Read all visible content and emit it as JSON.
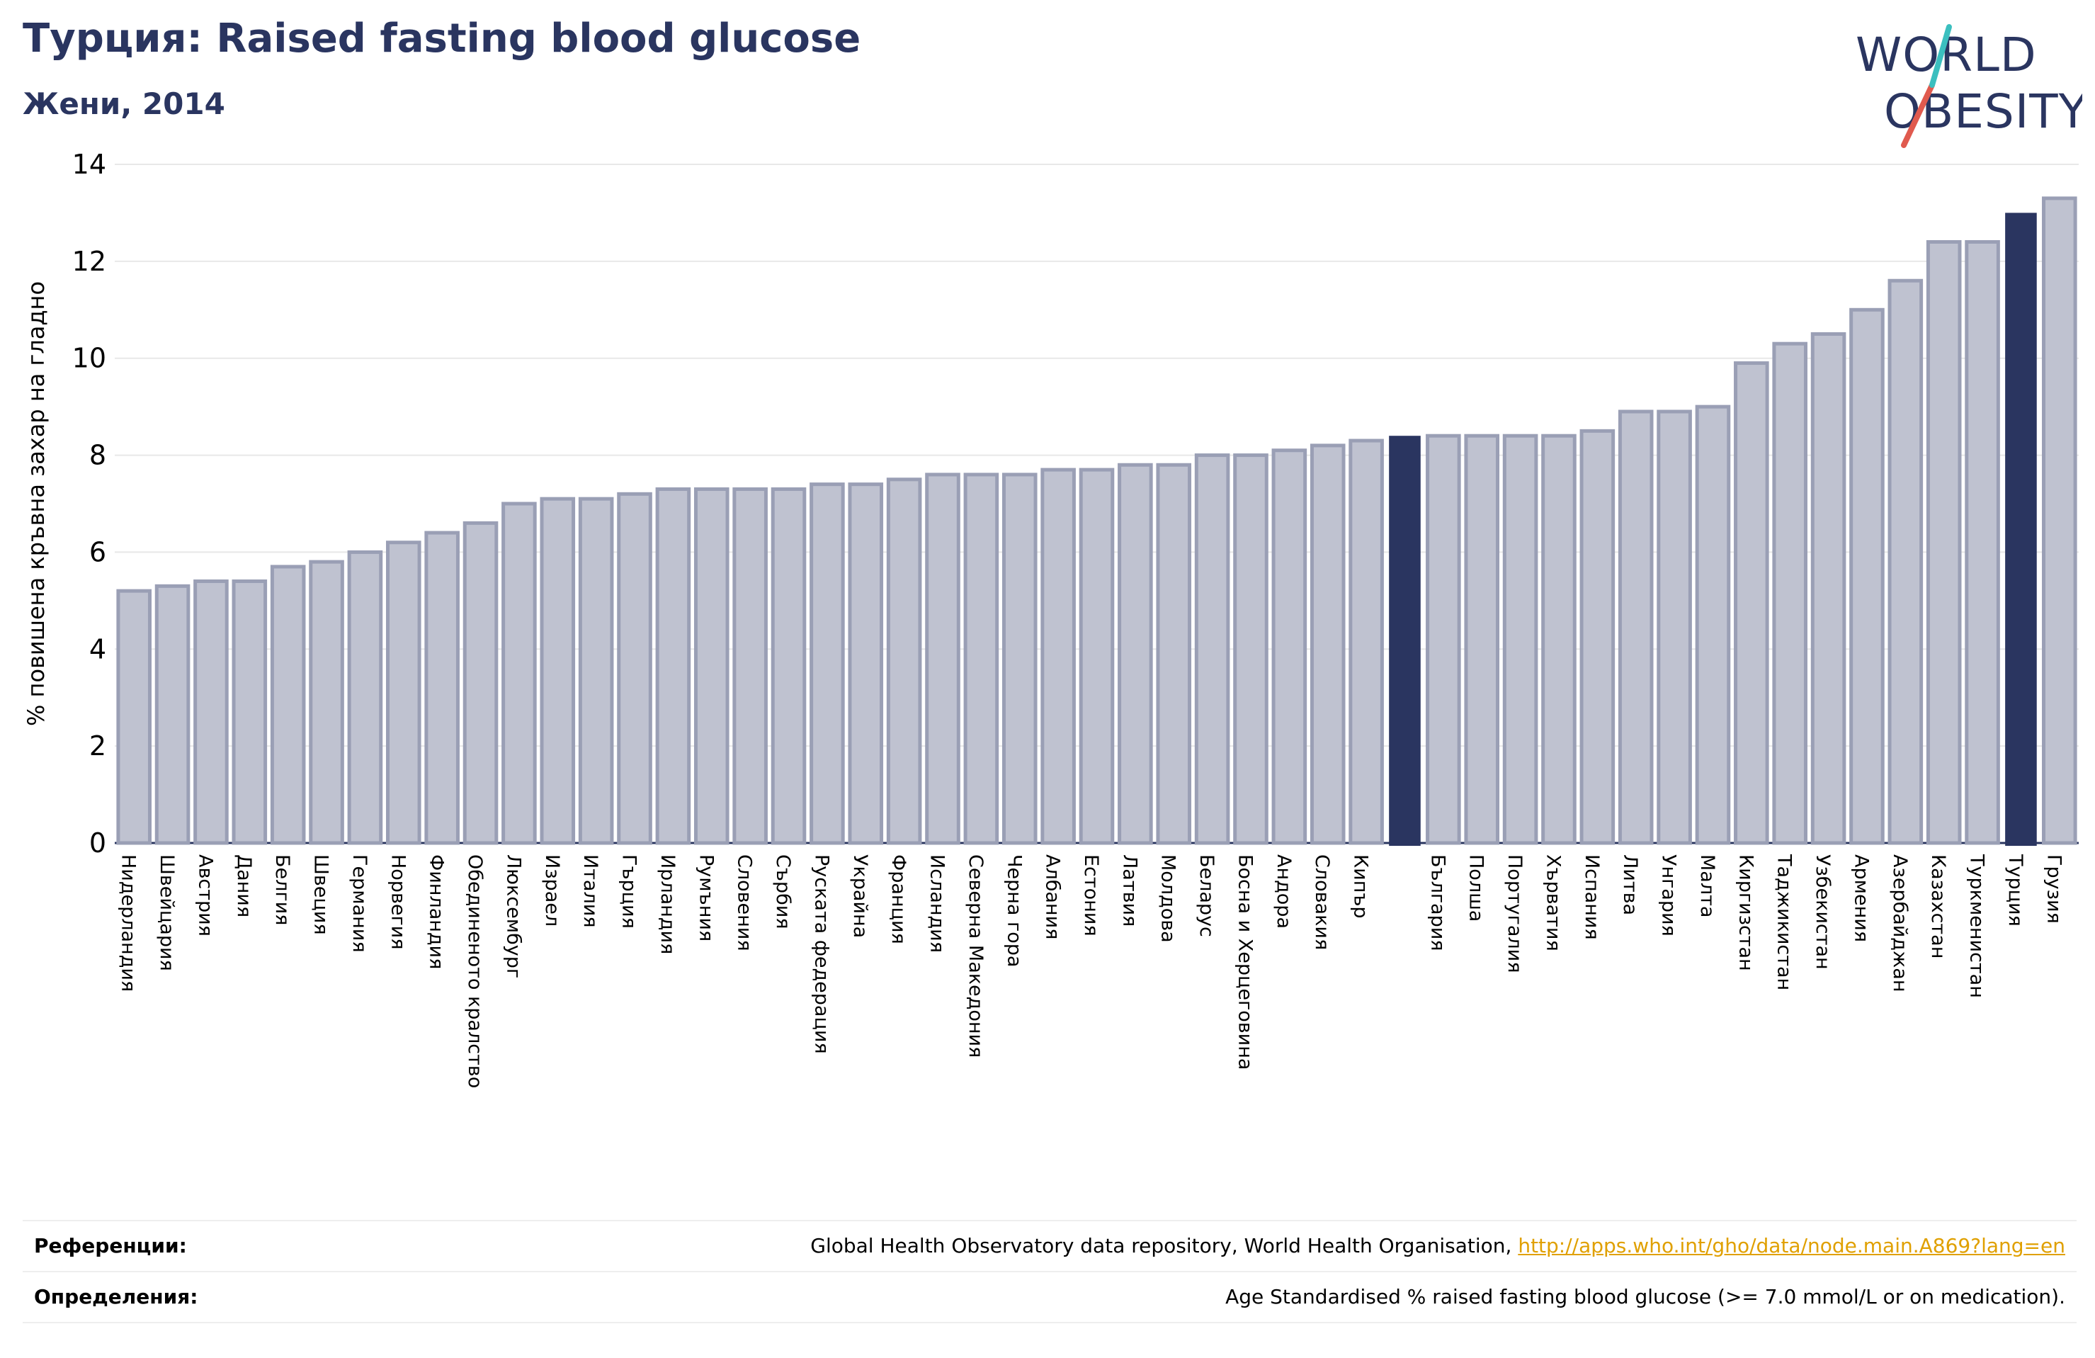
{
  "header": {
    "title": "Турция: Raised fasting blood glucose",
    "subtitle": "Жени, 2014"
  },
  "logo": {
    "line1": "WORLD",
    "line2": "OBESITY",
    "colors": {
      "text": "#2a3560",
      "slash_red": "#e05a4e",
      "slash_teal": "#3bbfbf"
    }
  },
  "colors": {
    "bar_default": "#bfc2d0",
    "bar_border": "#9a9fb5",
    "bar_highlight": "#2a3560",
    "text": "#2a3560"
  },
  "chart_data": {
    "type": "bar",
    "ylabel": "% повишена кръвна захар на гладно",
    "ylim": [
      0,
      14
    ],
    "yticks": [
      0,
      2,
      4,
      6,
      8,
      10,
      12,
      14
    ],
    "grid": true,
    "categories": [
      "Нидерландия",
      "Швейцария",
      "Австрия",
      "Дания",
      "Белгия",
      "Швеция",
      "Германия",
      "Норвегия",
      "Финландия",
      "Обединеното кралство",
      "Люксембург",
      "Израел",
      "Италия",
      "Гърция",
      "Ирландия",
      "Румъния",
      "Словения",
      "Сърбия",
      "Руската федерация",
      "Украйна",
      "Франция",
      "Исландия",
      "Северна Македония",
      "Черна гора",
      "Албания",
      "Естония",
      "Латвия",
      "Молдова",
      "Беларус",
      "Босна и Херцеговина",
      "Андора",
      "Словакия",
      "Кипър",
      "",
      "България",
      "Полша",
      "Португалия",
      "Хърватия",
      "Испания",
      "Литва",
      "Унгария",
      "Малта",
      "Киргизстан",
      "Таджикистан",
      "Узбекистан",
      "Армения",
      "Азербайджан",
      "Казахстан",
      "Туркменистан",
      "Турция",
      "Грузия"
    ],
    "values": [
      5.2,
      5.3,
      5.4,
      5.4,
      5.7,
      5.8,
      6.0,
      6.2,
      6.4,
      6.6,
      7.0,
      7.1,
      7.1,
      7.2,
      7.3,
      7.3,
      7.3,
      7.3,
      7.4,
      7.4,
      7.5,
      7.6,
      7.6,
      7.6,
      7.7,
      7.7,
      7.8,
      7.8,
      8.0,
      8.0,
      8.1,
      8.2,
      8.3,
      8.4,
      8.4,
      8.4,
      8.4,
      8.4,
      8.5,
      8.9,
      8.9,
      9.0,
      9.9,
      10.3,
      10.5,
      11.0,
      11.6,
      12.4,
      12.4,
      13.0,
      13.3
    ],
    "highlight_indices": [
      33,
      49
    ]
  },
  "footer": {
    "references_label": "Референции:",
    "references_text": "Global Health Observatory data repository, World Health Organisation, ",
    "references_link": "http://apps.who.int/gho/data/node.main.A869?lang=en",
    "definitions_label": "Определения:",
    "definitions_text": "Age Standardised % raised fasting blood glucose (>= 7.0 mmol/L or on medication)."
  }
}
